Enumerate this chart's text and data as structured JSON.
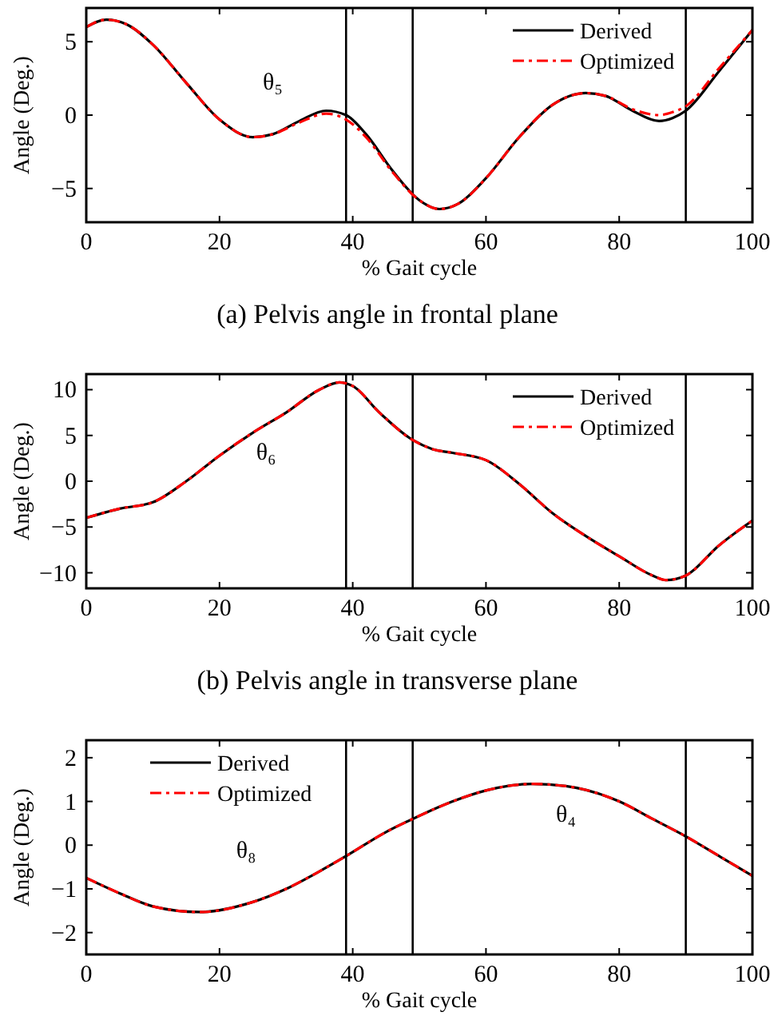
{
  "chart_data": [
    {
      "type": "line",
      "title": "(a) Pelvis angle in frontal plane",
      "xlabel": "% Gait cycle",
      "ylabel": "Angle (Deg.)",
      "xlim": [
        0,
        100
      ],
      "xticks": [
        0,
        20,
        40,
        60,
        80,
        100
      ],
      "ylim": [
        -7.3,
        7.3
      ],
      "yticks": [
        -5,
        0,
        5
      ],
      "legend": "top right",
      "grid": false,
      "series": [
        {
          "name": "Derived",
          "color": "#000000",
          "line_style": "solid",
          "x": [
            0,
            3,
            6,
            10,
            15,
            20,
            25,
            28,
            32,
            36,
            39,
            42,
            46,
            50,
            53,
            56,
            60,
            65,
            70,
            75,
            78,
            82,
            86,
            88,
            90,
            95,
            100
          ],
          "values": [
            6,
            6.5,
            6.2,
            4.8,
            2.2,
            -0.3,
            -1.5,
            -1.3,
            -0.4,
            0.3,
            0,
            -1.3,
            -3.8,
            -5.8,
            -6.4,
            -6,
            -4.3,
            -1.5,
            0.7,
            1.5,
            1.3,
            0.3,
            -0.4,
            -0.2,
            0.3,
            3,
            5.8
          ]
        },
        {
          "name": "Optimized",
          "color": "#ff0000",
          "line_style": "dashed",
          "x": [
            0,
            3,
            6,
            10,
            15,
            20,
            25,
            28,
            32,
            36,
            39,
            42,
            46,
            50,
            53,
            56,
            60,
            65,
            70,
            75,
            78,
            82,
            86,
            88,
            90,
            95,
            100
          ],
          "values": [
            6,
            6.5,
            6.2,
            4.8,
            2.2,
            -0.3,
            -1.5,
            -1.3,
            -0.5,
            0.1,
            -0.3,
            -1.5,
            -3.9,
            -5.8,
            -6.4,
            -6,
            -4.3,
            -1.5,
            0.7,
            1.5,
            1.3,
            0.4,
            0,
            0.2,
            0.6,
            3.2,
            5.8
          ]
        }
      ],
      "ref_lines": [
        {
          "axis": "x",
          "value": 39,
          "color": "#000000"
        },
        {
          "axis": "x",
          "value": 49,
          "color": "#000000"
        },
        {
          "axis": "x",
          "value": 90,
          "color": "#000000"
        }
      ],
      "annotations": [
        "θ₅"
      ]
    },
    {
      "type": "line",
      "title": "(b) Pelvis angle in transverse plane",
      "xlabel": "% Gait cycle",
      "ylabel": "Angle (Deg.)",
      "xlim": [
        0,
        100
      ],
      "xticks": [
        0,
        20,
        40,
        60,
        80,
        100
      ],
      "ylim": [
        -11.7,
        11.7
      ],
      "yticks": [
        -10,
        -5,
        0,
        5,
        10
      ],
      "legend": "top right",
      "grid": false,
      "series": [
        {
          "name": "Derived",
          "color": "#000000",
          "line_style": "solid",
          "x": [
            0,
            5,
            10,
            15,
            20,
            25,
            30,
            35,
            38,
            40,
            44,
            49,
            52,
            55,
            60,
            65,
            70,
            75,
            80,
            85,
            87,
            90,
            95,
            100
          ],
          "values": [
            -4,
            -3,
            -2.3,
            0,
            2.8,
            5.3,
            7.5,
            10,
            10.8,
            10.4,
            7.5,
            4.5,
            3.5,
            3.1,
            2.3,
            -0.3,
            -3.5,
            -6,
            -8.2,
            -10.3,
            -10.8,
            -10.3,
            -7,
            -4.3
          ]
        },
        {
          "name": "Optimized",
          "color": "#ff0000",
          "line_style": "dashed",
          "x": [
            0,
            5,
            10,
            15,
            20,
            25,
            30,
            35,
            38,
            40,
            44,
            49,
            52,
            55,
            60,
            65,
            70,
            75,
            80,
            85,
            87,
            90,
            95,
            100
          ],
          "values": [
            -4,
            -3,
            -2.3,
            0,
            2.8,
            5.3,
            7.5,
            10,
            10.8,
            10.4,
            7.5,
            4.5,
            3.5,
            3.1,
            2.3,
            -0.3,
            -3.5,
            -6,
            -8.2,
            -10.3,
            -10.8,
            -10.3,
            -7,
            -4.3
          ]
        }
      ],
      "ref_lines": [
        {
          "axis": "x",
          "value": 39,
          "color": "#000000"
        },
        {
          "axis": "x",
          "value": 49,
          "color": "#000000"
        },
        {
          "axis": "x",
          "value": 90,
          "color": "#000000"
        }
      ],
      "annotations": [
        "θ₆"
      ]
    },
    {
      "type": "line",
      "xlabel": "% Gait cycle",
      "ylabel": "Angle (Deg.)",
      "xlim": [
        0,
        100
      ],
      "xticks": [
        0,
        20,
        40,
        60,
        80,
        100
      ],
      "ylim": [
        -2.5,
        2.4
      ],
      "yticks": [
        -2,
        -1,
        0,
        1,
        2
      ],
      "legend": "top left",
      "grid": false,
      "series": [
        {
          "name": "Derived",
          "color": "#000000",
          "line_style": "solid",
          "x": [
            0,
            5,
            10,
            17,
            25,
            30,
            35,
            39,
            45,
            49,
            55,
            60,
            67,
            72,
            80,
            85,
            90,
            95,
            100
          ],
          "values": [
            -0.75,
            -1.1,
            -1.4,
            -1.53,
            -1.3,
            -1,
            -0.6,
            -0.25,
            0.3,
            0.6,
            1,
            1.25,
            1.4,
            1.35,
            1,
            0.6,
            0.2,
            -0.25,
            -0.7
          ]
        },
        {
          "name": "Optimized",
          "color": "#ff0000",
          "line_style": "dashed",
          "x": [
            0,
            5,
            10,
            17,
            25,
            30,
            35,
            39,
            45,
            49,
            55,
            60,
            67,
            72,
            80,
            85,
            90,
            95,
            100
          ],
          "values": [
            -0.75,
            -1.1,
            -1.4,
            -1.53,
            -1.3,
            -1,
            -0.6,
            -0.25,
            0.3,
            0.6,
            1,
            1.25,
            1.4,
            1.35,
            1,
            0.6,
            0.2,
            -0.25,
            -0.7
          ]
        }
      ],
      "ref_lines": [
        {
          "axis": "x",
          "value": 39,
          "color": "#000000"
        },
        {
          "axis": "x",
          "value": 49,
          "color": "#000000"
        },
        {
          "axis": "x",
          "value": 90,
          "color": "#000000"
        }
      ],
      "annotations": [
        "θ₈",
        "θ₄"
      ]
    }
  ]
}
